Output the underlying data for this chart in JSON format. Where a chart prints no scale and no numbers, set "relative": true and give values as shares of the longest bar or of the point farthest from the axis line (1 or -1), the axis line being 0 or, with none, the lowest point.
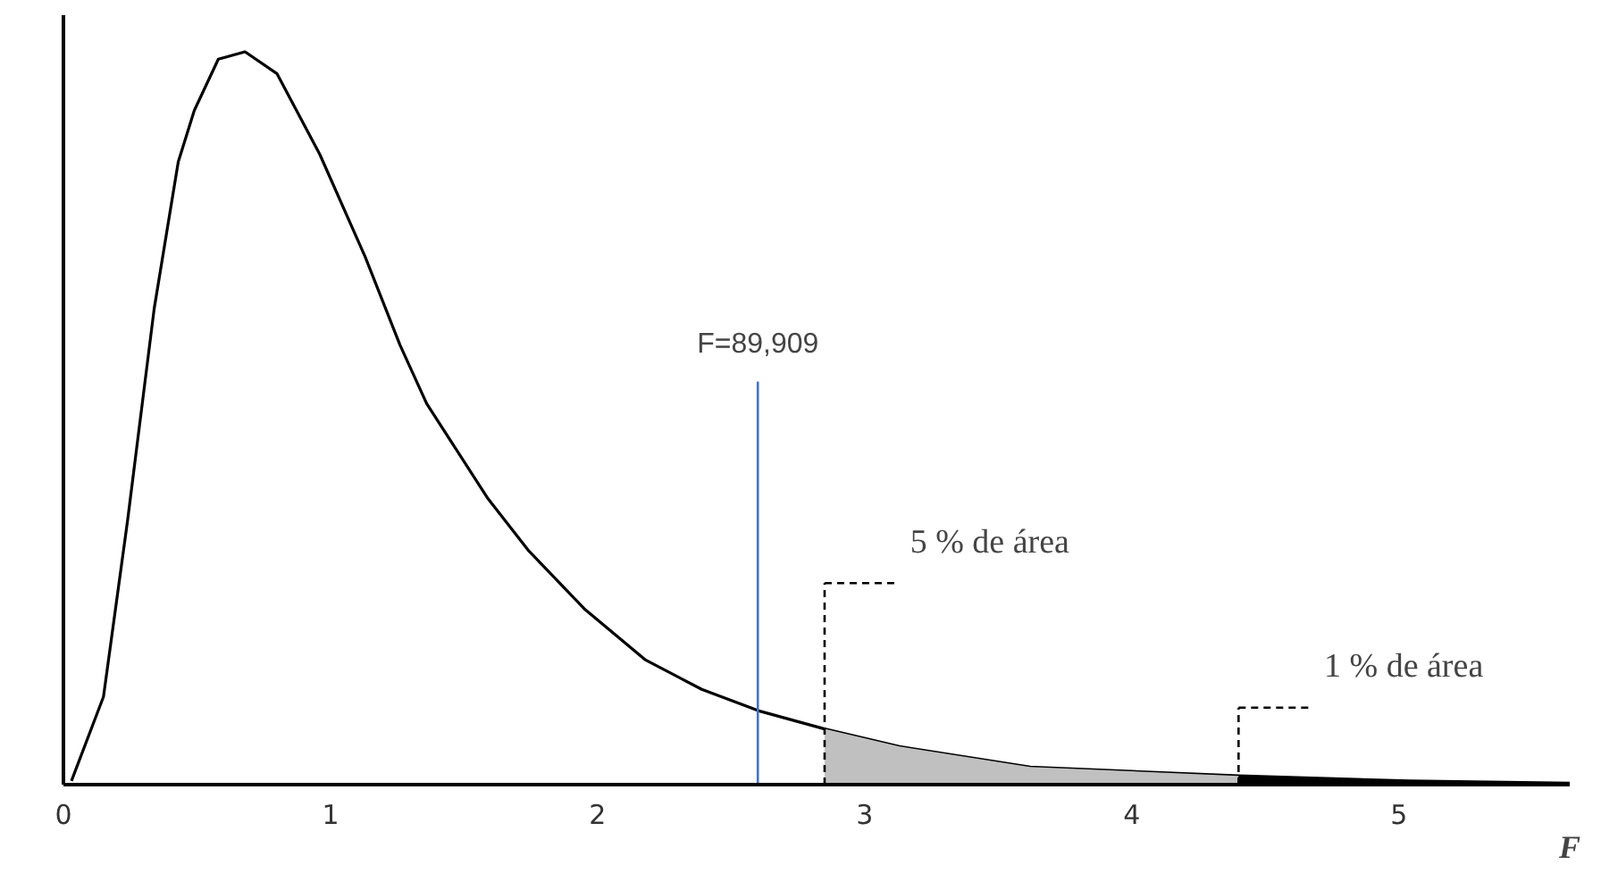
{
  "chart_data": {
    "type": "line",
    "relative": true,
    "xlabel": "F",
    "xlim": [
      0,
      5.64
    ],
    "xticks": [
      0,
      1,
      2,
      3,
      4,
      5
    ],
    "grid": false,
    "marker": "none",
    "line_style": "solid",
    "series": [
      {
        "color": "#000000",
        "x": [
          0.03,
          0.15,
          0.24,
          0.34,
          0.43,
          0.49,
          0.58,
          0.68,
          0.8,
          0.96,
          1.13,
          1.26,
          1.36,
          1.59,
          1.74,
          1.95,
          2.18,
          2.39,
          2.61,
          2.85,
          3.13,
          3.62,
          4.4,
          5.04,
          5.64
        ],
        "values": [
          0.005,
          0.12,
          0.36,
          0.65,
          0.85,
          0.92,
          0.99,
          1.0,
          0.97,
          0.86,
          0.72,
          0.6,
          0.52,
          0.39,
          0.32,
          0.24,
          0.17,
          0.13,
          0.1,
          0.076,
          0.052,
          0.024,
          0.012,
          0.005,
          0.002
        ]
      },
      {
        "type": "area",
        "color": "#c0c0c0",
        "x": [
          2.85,
          3.13,
          3.62,
          4.4
        ],
        "values": [
          0.076,
          0.052,
          0.024,
          0.012
        ]
      },
      {
        "type": "area",
        "color": "#000000",
        "x": [
          4.4,
          5.04,
          5.64
        ],
        "values": [
          0.012,
          0.005,
          0.002
        ]
      }
    ],
    "ref_lines": [
      {
        "axis": "x",
        "value": 2.6,
        "color": "#4472c4",
        "line_style": "solid"
      },
      {
        "axis": "x",
        "value": 2.85,
        "label": "5 % de área",
        "color": "#000000",
        "line_style": "dashed"
      },
      {
        "axis": "x",
        "value": 4.4,
        "label": "1 % de área",
        "color": "#000000",
        "line_style": "dashed"
      }
    ],
    "annotations": [
      "F=89,909"
    ]
  }
}
